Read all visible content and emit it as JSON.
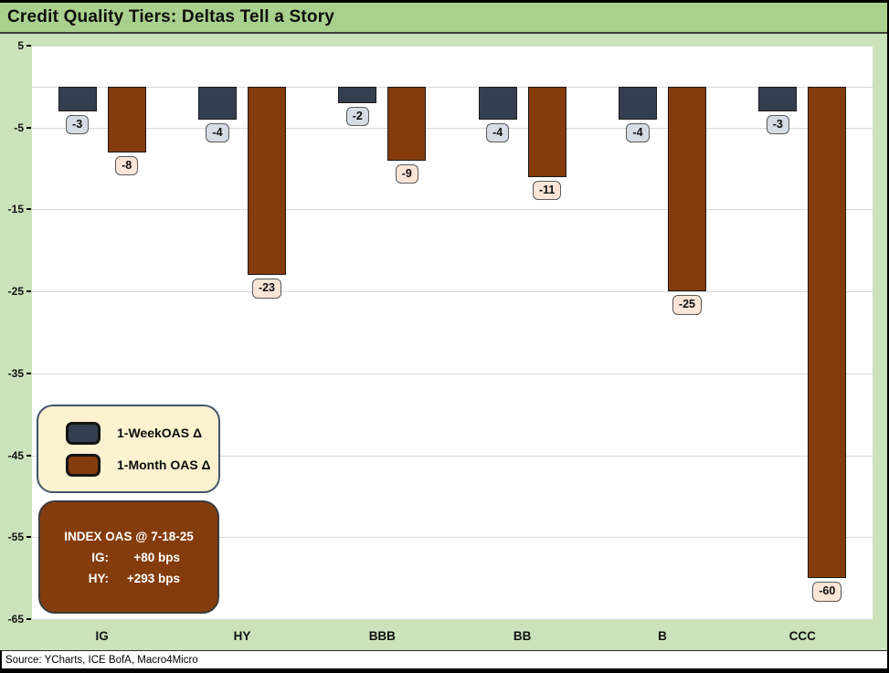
{
  "title": "Credit Quality Tiers: Deltas Tell a Story",
  "source": "Source: YCharts, ICE BofA, Macro4Micro",
  "legend": {
    "week_label": "1-WeekOAS Δ",
    "month_label": "1-Month OAS Δ"
  },
  "info_box": {
    "title": "INDEX OAS @ 7-18-25",
    "ig_label": "IG:",
    "ig_value": "+80 bps",
    "hy_label": "HY:",
    "hy_value": "+293 bps"
  },
  "colors": {
    "title_bar_bg": "#A9D18E",
    "chart_bg": "#CBE3BB",
    "plot_bg": "#FFFFFF",
    "gridline": "#D9D9D9",
    "week_bar": "#333F50",
    "month_bar": "#843C0C",
    "week_label_bg": "#D6DCE5",
    "month_label_bg": "#FBE5D6",
    "legend_bg": "#FCF2CF",
    "legend_border": "#44546A",
    "info_box_bg": "#843C0C"
  },
  "chart_data": {
    "type": "bar",
    "title": "Credit Quality Tiers: Deltas Tell a Story",
    "xlabel": "",
    "ylabel": "",
    "categories": [
      "IG",
      "HY",
      "BBB",
      "BB",
      "B",
      "CCC"
    ],
    "series": [
      {
        "key": "week",
        "name": "1-Week OAS Δ",
        "values": [
          -3,
          -4,
          -2,
          -4,
          -4,
          -3
        ],
        "color": "#333F50",
        "label_bg": "#D6DCE5"
      },
      {
        "key": "month",
        "name": "1-Month OAS Δ",
        "values": [
          -8,
          -23,
          -9,
          -11,
          -25,
          -60
        ],
        "color": "#843C0C",
        "label_bg": "#FBE5D6"
      }
    ],
    "ylim": [
      -65,
      5
    ],
    "yticks": [
      5,
      -5,
      -15,
      -25,
      -35,
      -45,
      -55,
      -65
    ],
    "grid": true,
    "data_labels": true,
    "legend_position": "inside-left"
  }
}
